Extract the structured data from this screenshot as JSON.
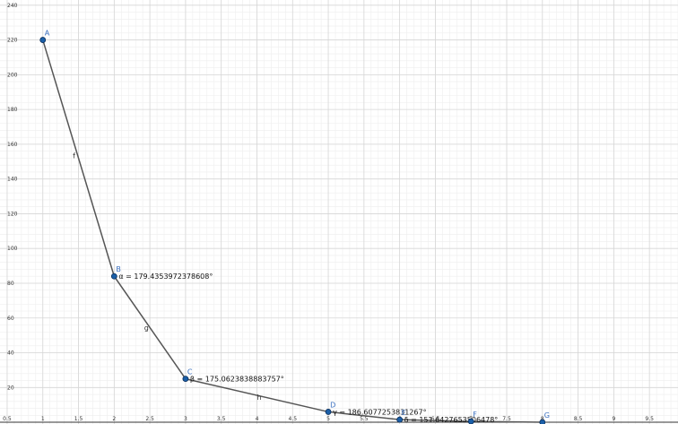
{
  "chart_data": {
    "type": "line",
    "title": "",
    "xlabel": "",
    "ylabel": "",
    "xlim": [
      0.4,
      9.9
    ],
    "ylim": [
      -1,
      243
    ],
    "grid": true,
    "x_ticks": [
      {
        "value": 0.5,
        "label": "0.5"
      },
      {
        "value": 1,
        "label": "1"
      },
      {
        "value": 1.5,
        "label": "1.5"
      },
      {
        "value": 2,
        "label": "2"
      },
      {
        "value": 2.5,
        "label": "2.5"
      },
      {
        "value": 3,
        "label": "3"
      },
      {
        "value": 3.5,
        "label": "3.5"
      },
      {
        "value": 4,
        "label": "4"
      },
      {
        "value": 4.5,
        "label": "4.5"
      },
      {
        "value": 5,
        "label": "5"
      },
      {
        "value": 5.5,
        "label": "5.5"
      },
      {
        "value": 6,
        "label": "6"
      },
      {
        "value": 6.5,
        "label": "6.5"
      },
      {
        "value": 7,
        "label": "7"
      },
      {
        "value": 7.5,
        "label": "7.5"
      },
      {
        "value": 8,
        "label": "8"
      },
      {
        "value": 8.5,
        "label": "8.5"
      },
      {
        "value": 9,
        "label": "9"
      },
      {
        "value": 9.5,
        "label": "9.5"
      }
    ],
    "y_ticks": [
      {
        "value": 20,
        "label": "20"
      },
      {
        "value": 40,
        "label": "40"
      },
      {
        "value": 60,
        "label": "60"
      },
      {
        "value": 80,
        "label": "80"
      },
      {
        "value": 100,
        "label": "100"
      },
      {
        "value": 120,
        "label": "120"
      },
      {
        "value": 140,
        "label": "140"
      },
      {
        "value": 160,
        "label": "160"
      },
      {
        "value": 180,
        "label": "180"
      },
      {
        "value": 200,
        "label": "200"
      },
      {
        "value": 220,
        "label": "220"
      },
      {
        "value": 240,
        "label": "240"
      }
    ],
    "points": [
      {
        "label": "A",
        "x": 1,
        "y": 220
      },
      {
        "label": "B",
        "x": 2,
        "y": 84
      },
      {
        "label": "C",
        "x": 3,
        "y": 25
      },
      {
        "label": "D",
        "x": 5,
        "y": 6
      },
      {
        "label": "E",
        "x": 6,
        "y": 1.5
      },
      {
        "label": "F",
        "x": 7,
        "y": 0.5
      },
      {
        "label": "G",
        "x": 8,
        "y": 0
      }
    ],
    "segment_labels": [
      {
        "label": "f",
        "x": 1.42,
        "y": 152
      },
      {
        "label": "g",
        "x": 2.42,
        "y": 53
      },
      {
        "label": "h",
        "x": 4.0,
        "y": 13
      }
    ],
    "angles": [
      {
        "at": "B",
        "text": "α = 179.4353972378608°"
      },
      {
        "at": "C",
        "text": "β = 175.0623838883757°"
      },
      {
        "at": "D",
        "text": "γ = 186.6077253831267°"
      },
      {
        "at": "E",
        "text": "δ = 151.6427653506478°"
      }
    ],
    "colors": {
      "background": "#ffffff",
      "grid_major": "#d6d6d6",
      "grid_minor": "#eeeeee",
      "axis": "#333333",
      "line": "#555555",
      "point_fill": "#1b5fa8",
      "point_stroke": "#0b2f5c",
      "point_label": "#3a6fc0",
      "text": "#333333"
    }
  }
}
